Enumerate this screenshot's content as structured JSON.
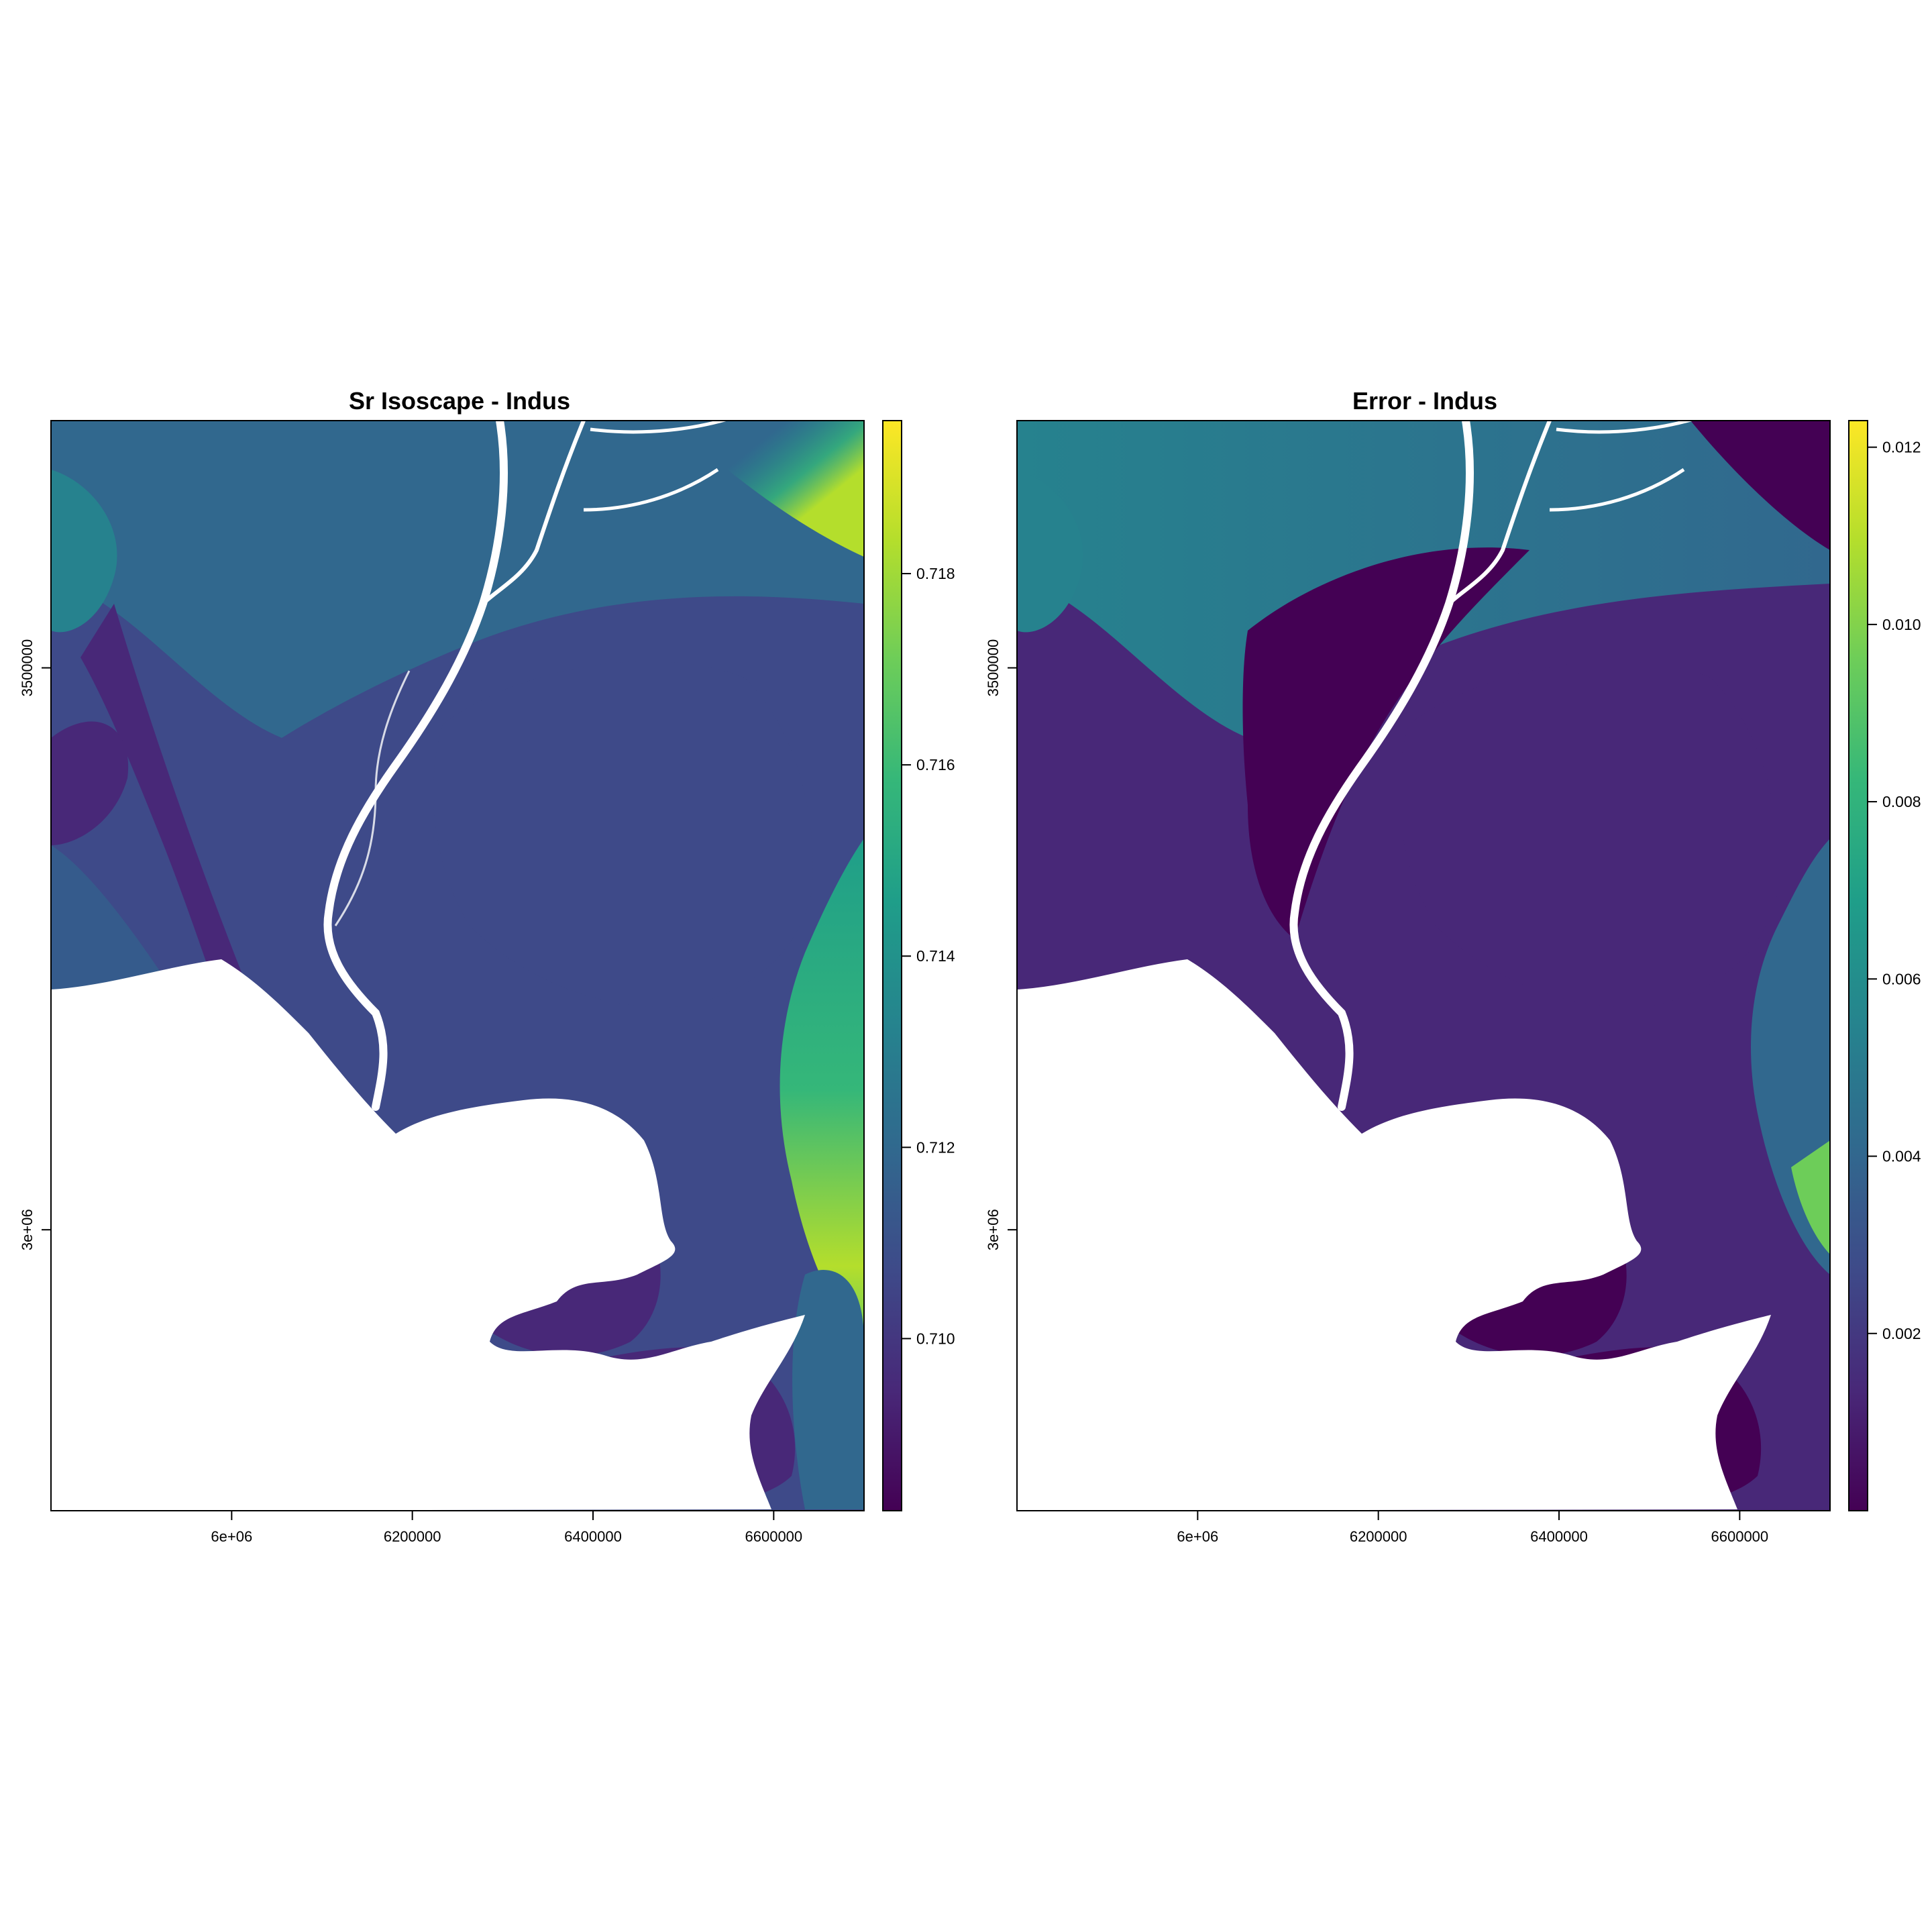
{
  "palette": {
    "viridis": [
      "#440154",
      "#482878",
      "#3E4A89",
      "#31688E",
      "#26828E",
      "#1F9E89",
      "#35B779",
      "#6DCD59",
      "#B4DE2C",
      "#FDE725"
    ],
    "background": "#ffffff"
  },
  "panels": [
    {
      "id": "sr-isoscape",
      "title": "Sr Isoscape - Indus",
      "x_ticks": [
        {
          "value": 6000000,
          "label": "6e+06"
        },
        {
          "value": 6200000,
          "label": "6200000"
        },
        {
          "value": 6400000,
          "label": "6400000"
        },
        {
          "value": 6600000,
          "label": "6600000"
        }
      ],
      "y_ticks": [
        {
          "value": 3000000,
          "label": "3e+06"
        },
        {
          "value": 3500000,
          "label": "3500000"
        }
      ],
      "xlim": [
        5800000,
        6700000
      ],
      "ylim": [
        2750000,
        3720000
      ],
      "legend": {
        "min": 0.7082,
        "max": 0.7196,
        "ticks": [
          {
            "value": 0.71,
            "label": "0.710"
          },
          {
            "value": 0.712,
            "label": "0.712"
          },
          {
            "value": 0.714,
            "label": "0.714"
          },
          {
            "value": 0.716,
            "label": "0.716"
          },
          {
            "value": 0.718,
            "label": "0.718"
          }
        ]
      }
    },
    {
      "id": "error",
      "title": "Error - Indus",
      "x_ticks": [
        {
          "value": 6000000,
          "label": "6e+06"
        },
        {
          "value": 6200000,
          "label": "6200000"
        },
        {
          "value": 6400000,
          "label": "6400000"
        },
        {
          "value": 6600000,
          "label": "6600000"
        }
      ],
      "y_ticks": [
        {
          "value": 3000000,
          "label": "3e+06"
        },
        {
          "value": 3500000,
          "label": "3500000"
        }
      ],
      "xlim": [
        5800000,
        6700000
      ],
      "ylim": [
        2750000,
        3720000
      ],
      "legend": {
        "min": 0.0,
        "max": 0.0123,
        "ticks": [
          {
            "value": 0.002,
            "label": "0.002"
          },
          {
            "value": 0.004,
            "label": "0.004"
          },
          {
            "value": 0.006,
            "label": "0.006"
          },
          {
            "value": 0.008,
            "label": "0.008"
          },
          {
            "value": 0.01,
            "label": "0.010"
          },
          {
            "value": 0.012,
            "label": "0.012"
          }
        ]
      }
    }
  ]
}
